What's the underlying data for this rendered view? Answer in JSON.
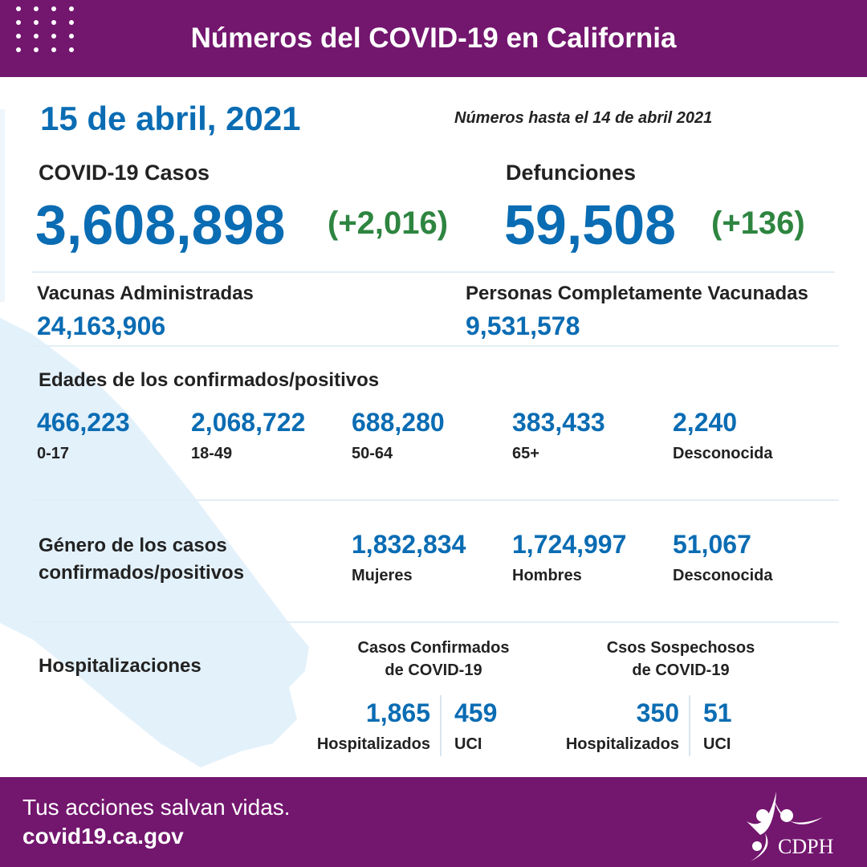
{
  "header": {
    "title": "Números del COVID-19 en California"
  },
  "date": "15 de abril, 2021",
  "as_of": "Números hasta el 14 de abril 2021",
  "cases": {
    "label": "COVID-19 Casos",
    "value": "3,608,898",
    "change": "(+2,016)"
  },
  "deaths": {
    "label": "Defunciones",
    "value": "59,508",
    "change": "(+136)"
  },
  "vaccines": {
    "label": "Vacunas Administradas",
    "value": "24,163,906"
  },
  "fully_vaccinated": {
    "label": "Personas Completamente Vacunadas",
    "value": "9,531,578"
  },
  "ages": {
    "title": "Edades de los confirmados/positivos",
    "items": [
      {
        "value": "466,223",
        "label": "0-17"
      },
      {
        "value": "2,068,722",
        "label": "18-49"
      },
      {
        "value": "688,280",
        "label": "50-64"
      },
      {
        "value": "383,433",
        "label": "65+"
      },
      {
        "value": "2,240",
        "label": "Desconocida"
      }
    ]
  },
  "gender": {
    "title_line1": "Género de los casos",
    "title_line2": "confirmados/positivos",
    "items": [
      {
        "value": "1,832,834",
        "label": "Mujeres"
      },
      {
        "value": "1,724,997",
        "label": "Hombres"
      },
      {
        "value": "51,067",
        "label": "Desconocida"
      }
    ]
  },
  "hosp": {
    "title": "Hospitalizaciones",
    "confirmed": {
      "title_line1": "Casos Confirmados",
      "title_line2": "de COVID-19",
      "hosp_value": "1,865",
      "hosp_label": "Hospitalizados",
      "icu_value": "459",
      "icu_label": "UCI"
    },
    "suspected": {
      "title_line1": "Csos Sospechosos",
      "title_line2": "de COVID-19",
      "hosp_value": "350",
      "hosp_label": "Hospitalizados",
      "icu_value": "51",
      "icu_label": "UCI"
    }
  },
  "footer": {
    "tagline": "Tus acciones salvan vidas.",
    "url": "covid19.ca.gov",
    "logo": "CDPH"
  },
  "colors": {
    "purple": "#73166e",
    "blue": "#0a6cb3",
    "green": "#2e8540",
    "map": "#e3f1fb"
  }
}
